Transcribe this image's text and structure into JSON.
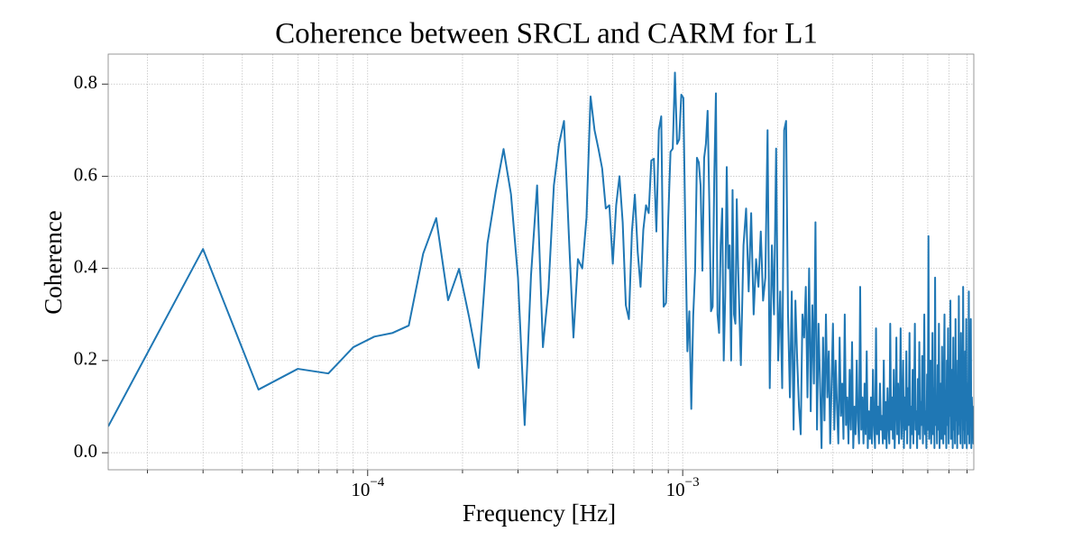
{
  "chart_data": {
    "type": "line",
    "title": "Coherence between SRCL and CARM for L1",
    "xlabel": "Frequency [Hz]",
    "ylabel": "Coherence",
    "color": "#1f77b4",
    "xscale": "log",
    "grid": true,
    "xlim": [
      1.5e-05,
      0.0084
    ],
    "ylim": [
      -0.037,
      0.865
    ],
    "xticks": [
      {
        "value": 0.0001,
        "label": "10",
        "exponent": "−4"
      },
      {
        "value": 0.001,
        "label": "10",
        "exponent": "−3"
      }
    ],
    "xminorticks": [
      2e-05,
      3e-05,
      4e-05,
      5e-05,
      6e-05,
      7e-05,
      8e-05,
      9e-05,
      0.0002,
      0.0003,
      0.0004,
      0.0005,
      0.0006,
      0.0007,
      0.0008,
      0.0009,
      0.002,
      0.003,
      0.004,
      0.005,
      0.006,
      0.007,
      0.008
    ],
    "yticks": [
      {
        "value": 0,
        "label": "0.0"
      },
      0.2,
      0.4,
      0.6,
      0.8
    ],
    "x": [
      1.5e-05,
      3e-05,
      4.5e-05,
      6e-05,
      7.5e-05,
      9e-05,
      0.000105,
      0.00012,
      0.000135,
      0.00015,
      0.000165,
      0.00018,
      0.000195,
      0.00021,
      0.000225,
      0.00024,
      0.000255,
      0.00027,
      0.000285,
      0.0003,
      0.000315,
      0.00033,
      0.000345,
      0.00036,
      0.000375,
      0.00039,
      0.000405,
      0.00042,
      0.000435,
      0.00045,
      0.000465,
      0.00048,
      0.000495,
      0.00051,
      0.000525,
      0.00054,
      0.000555,
      0.00057,
      0.000585,
      0.0006,
      0.000615,
      0.00063,
      0.000645,
      0.00066,
      0.000675,
      0.00069,
      0.000705,
      0.00072,
      0.000735,
      0.00075,
      0.000765,
      0.00078,
      0.000795,
      0.00081,
      0.000825,
      0.00084,
      0.000855,
      0.00087,
      0.000885,
      0.0009,
      0.000915,
      0.00093,
      0.000945,
      0.00096,
      0.000975,
      0.00099,
      0.001005,
      0.00102,
      0.001035,
      0.00105,
      0.001065,
      0.00108,
      0.001095,
      0.00111,
      0.001125,
      0.00114,
      0.001155,
      0.00117,
      0.001185,
      0.0012,
      0.001215,
      0.00123,
      0.001245,
      0.00126,
      0.001275,
      0.00129,
      0.001305,
      0.00132,
      0.001335,
      0.00135,
      0.001365,
      0.00138,
      0.001395,
      0.00141,
      0.001425,
      0.00144,
      0.001455,
      0.00147,
      0.001485,
      0.0015,
      0.00153,
      0.00156,
      0.00159,
      0.00162,
      0.00165,
      0.00168,
      0.00171,
      0.00174,
      0.00177,
      0.0018,
      0.00183,
      0.00186,
      0.00189,
      0.00192,
      0.00195,
      0.00198,
      0.00201,
      0.00204,
      0.00207,
      0.0021,
      0.00213,
      0.00216,
      0.00219,
      0.00222,
      0.00225,
      0.00228,
      0.00231,
      0.00234,
      0.00237,
      0.0024,
      0.00243,
      0.00246,
      0.00249,
      0.00252,
      0.00255,
      0.00258,
      0.00261,
      0.00264,
      0.00267,
      0.0027,
      0.00273,
      0.00276,
      0.00279,
      0.00282,
      0.00285,
      0.00288,
      0.00291,
      0.00294,
      0.00297,
      0.003,
      0.00303,
      0.00306,
      0.00309,
      0.00312,
      0.00315,
      0.00318,
      0.00321,
      0.00324,
      0.00327,
      0.0033,
      0.00333,
      0.00336,
      0.00339,
      0.00342,
      0.00345,
      0.00348,
      0.00351,
      0.00354,
      0.00357,
      0.0036,
      0.00363,
      0.00366,
      0.00369,
      0.00372,
      0.00375,
      0.00378,
      0.00381,
      0.00384,
      0.00387,
      0.0039,
      0.00393,
      0.00396,
      0.00399,
      0.00402,
      0.00405,
      0.00408,
      0.00411,
      0.00414,
      0.00417,
      0.0042,
      0.00423,
      0.00426,
      0.00429,
      0.00432,
      0.00435,
      0.00438,
      0.00441,
      0.00444,
      0.00447,
      0.0045,
      0.00453,
      0.00456,
      0.00459,
      0.00462,
      0.00465,
      0.00468,
      0.00471,
      0.00474,
      0.00477,
      0.0048,
      0.00483,
      0.00486,
      0.00489,
      0.00492,
      0.00495,
      0.00498,
      0.00501,
      0.00504,
      0.00507,
      0.0051,
      0.00513,
      0.00516,
      0.00519,
      0.00522,
      0.00525,
      0.00528,
      0.00531,
      0.00534,
      0.00537,
      0.0054,
      0.00543,
      0.00546,
      0.00549,
      0.00552,
      0.00555,
      0.00558,
      0.00561,
      0.00564,
      0.00567,
      0.0057,
      0.00573,
      0.00576,
      0.00579,
      0.00582,
      0.00585,
      0.00588,
      0.00591,
      0.00594,
      0.00597,
      0.006,
      0.00603,
      0.00606,
      0.00609,
      0.00612,
      0.00615,
      0.00618,
      0.00621,
      0.00624,
      0.00627,
      0.0063,
      0.00633,
      0.00636,
      0.00639,
      0.00642,
      0.00645,
      0.00648,
      0.00651,
      0.00654,
      0.00657,
      0.0066,
      0.00663,
      0.00666,
      0.00669,
      0.00672,
      0.00675,
      0.00678,
      0.00681,
      0.00684,
      0.00687,
      0.0069,
      0.00693,
      0.00696,
      0.00699,
      0.00702,
      0.00705,
      0.00708,
      0.00711,
      0.00714,
      0.00717,
      0.0072,
      0.00723,
      0.00726,
      0.00729,
      0.00732,
      0.00735,
      0.00738,
      0.00741,
      0.00744,
      0.00747,
      0.0075,
      0.00753,
      0.00756,
      0.00759,
      0.00762,
      0.00765,
      0.00768,
      0.00771,
      0.00774,
      0.00777,
      0.0078,
      0.00783,
      0.00786,
      0.00789,
      0.00792,
      0.00795,
      0.00798,
      0.00801,
      0.00804,
      0.00807,
      0.0081,
      0.00813,
      0.00816,
      0.00819,
      0.00822,
      0.00825,
      0.00828,
      0.00831,
      0.00834,
      0.00837,
      0.0084
    ],
    "values": [
      0.057,
      0.442,
      0.137,
      0.182,
      0.172,
      0.229,
      0.252,
      0.26,
      0.276,
      0.432,
      0.509,
      0.331,
      0.399,
      0.293,
      0.184,
      0.454,
      0.567,
      0.659,
      0.561,
      0.38,
      0.06,
      0.385,
      0.58,
      0.229,
      0.356,
      0.58,
      0.67,
      0.72,
      0.474,
      0.25,
      0.42,
      0.4,
      0.51,
      0.773,
      0.7,
      0.66,
      0.617,
      0.53,
      0.537,
      0.41,
      0.537,
      0.6,
      0.5,
      0.32,
      0.29,
      0.48,
      0.56,
      0.435,
      0.36,
      0.484,
      0.537,
      0.52,
      0.634,
      0.638,
      0.48,
      0.7,
      0.73,
      0.317,
      0.325,
      0.51,
      0.653,
      0.66,
      0.825,
      0.67,
      0.68,
      0.777,
      0.77,
      0.474,
      0.22,
      0.307,
      0.095,
      0.297,
      0.395,
      0.64,
      0.63,
      0.58,
      0.395,
      0.64,
      0.67,
      0.742,
      0.543,
      0.307,
      0.317,
      0.6,
      0.78,
      0.3,
      0.26,
      0.45,
      0.53,
      0.2,
      0.34,
      0.62,
      0.4,
      0.45,
      0.2,
      0.57,
      0.3,
      0.28,
      0.55,
      0.4,
      0.19,
      0.45,
      0.53,
      0.35,
      0.52,
      0.3,
      0.42,
      0.36,
      0.48,
      0.33,
      0.38,
      0.7,
      0.14,
      0.45,
      0.3,
      0.66,
      0.2,
      0.35,
      0.14,
      0.7,
      0.72,
      0.3,
      0.12,
      0.35,
      0.05,
      0.33,
      0.2,
      0.1,
      0.04,
      0.3,
      0.25,
      0.36,
      0.12,
      0.4,
      0.09,
      0.32,
      0.15,
      0.5,
      0.05,
      0.28,
      0.15,
      0.01,
      0.25,
      0.07,
      0.3,
      0.12,
      0.22,
      0.02,
      0.15,
      0.28,
      0.05,
      0.2,
      0.1,
      0.02,
      0.25,
      0.08,
      0.15,
      0.03,
      0.3,
      0.06,
      0.12,
      0.02,
      0.18,
      0.05,
      0.24,
      0.01,
      0.1,
      0.04,
      0.2,
      0.07,
      0.02,
      0.36,
      0.05,
      0.12,
      0.02,
      0.15,
      0.04,
      0.22,
      0.01,
      0.09,
      0.03,
      0.12,
      0.02,
      0.18,
      0.06,
      0.01,
      0.27,
      0.04,
      0.1,
      0.02,
      0.15,
      0.05,
      0.08,
      0.02,
      0.2,
      0.03,
      0.11,
      0.01,
      0.14,
      0.06,
      0.02,
      0.28,
      0.05,
      0.12,
      0.03,
      0.18,
      0.01,
      0.09,
      0.25,
      0.04,
      0.15,
      0.02,
      0.1,
      0.27,
      0.03,
      0.08,
      0.2,
      0.01,
      0.12,
      0.05,
      0.22,
      0.02,
      0.14,
      0.06,
      0.26,
      0.01,
      0.1,
      0.04,
      0.18,
      0.02,
      0.12,
      0.28,
      0.05,
      0.09,
      0.01,
      0.16,
      0.04,
      0.24,
      0.03,
      0.11,
      0.06,
      0.21,
      0.02,
      0.13,
      0.3,
      0.04,
      0.09,
      0.01,
      0.17,
      0.05,
      0.47,
      0.03,
      0.12,
      0.2,
      0.02,
      0.08,
      0.26,
      0.04,
      0.14,
      0.01,
      0.38,
      0.06,
      0.11,
      0.02,
      0.19,
      0.05,
      0.28,
      0.01,
      0.1,
      0.15,
      0.03,
      0.23,
      0.07,
      0.02,
      0.17,
      0.3,
      0.04,
      0.12,
      0.01,
      0.2,
      0.06,
      0.27,
      0.02,
      0.14,
      0.08,
      0.33,
      0.03,
      0.1,
      0.18,
      0.01,
      0.25,
      0.05,
      0.12,
      0.02,
      0.29,
      0.07,
      0.15,
      0.01,
      0.2,
      0.04,
      0.34,
      0.06,
      0.11,
      0.02,
      0.26,
      0.08,
      0.17,
      0.01,
      0.36,
      0.05,
      0.13,
      0.02,
      0.22,
      0.07,
      0.29,
      0.01,
      0.15,
      0.04,
      0.1,
      0.35,
      0.02,
      0.19,
      0.06,
      0.29,
      0.01,
      0.12,
      0.08,
      0.1,
      0.02,
      0.09
    ]
  }
}
